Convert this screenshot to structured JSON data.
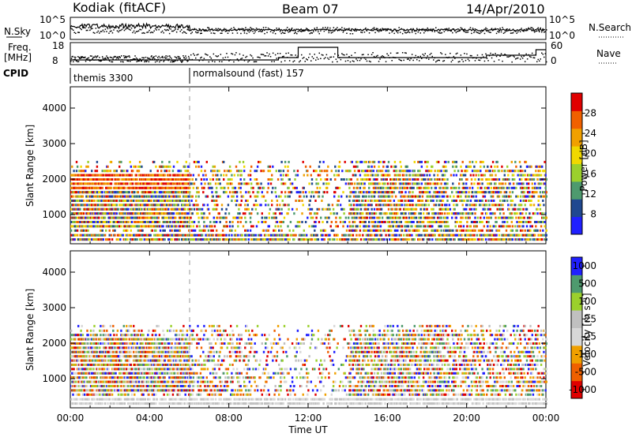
{
  "header": {
    "station": "Kodiak (fitACF)",
    "beam": "Beam 07",
    "date": "14/Apr/2010"
  },
  "meta_panel": {
    "left_label_top": "N.Sky",
    "right_label_top": "N.Search",
    "left_label_mid": "Freq.",
    "left_unit_mid": "[MHz]",
    "right_label_mid": "Nave",
    "cpid_label": "CPID",
    "nsky_ticks": [
      "10^5",
      "10^0"
    ],
    "nsearch_ticks": [
      "10^5",
      "10^0"
    ],
    "freq_ticks": [
      "18",
      "8"
    ],
    "nave_ticks": [
      "60",
      "0"
    ],
    "cpid_segments": [
      {
        "label": "themis 3300",
        "start_hour": 0
      },
      {
        "label": "normalsound (fast) 157",
        "start_hour": 6
      }
    ]
  },
  "colors": {
    "power": [
      "#2020ff",
      "#204890",
      "#4e9a6e",
      "#9bd02c",
      "#f0d800",
      "#f0a000",
      "#f06000",
      "#e00000"
    ],
    "velocity": [
      "#e00000",
      "#f06000",
      "#f0a000",
      "#d8d8d8",
      "#c0c0c0",
      "#9bd02c",
      "#4e9a6e",
      "#2020ff"
    ]
  },
  "chart_data": [
    {
      "type": "heatmap",
      "title": "Power",
      "ylabel": "Slant Range [km]",
      "xlabel": "",
      "xlim": [
        0,
        24
      ],
      "ylim": [
        180,
        4600
      ],
      "yticks": [
        "1000",
        "2000",
        "3000",
        "4000"
      ],
      "xticks": [
        "00:00",
        "04:00",
        "08:00",
        "12:00",
        "16:00",
        "20:00",
        "00:00"
      ],
      "colorbar_label": "Power [dB]",
      "colorbar_ticks": [
        "8",
        "12",
        "16",
        "20",
        "24",
        "28"
      ],
      "colorbar_range": [
        4,
        32
      ],
      "active_range_gates_km": [
        2480,
        2350,
        2230,
        2110,
        1990,
        1870,
        1750,
        1630,
        1510,
        1390,
        1270,
        1150,
        1030,
        910,
        790,
        670,
        550,
        420,
        300
      ]
    },
    {
      "type": "heatmap",
      "title": "Velocity",
      "ylabel": "Slant Range [km]",
      "xlabel": "Time UT",
      "xlim": [
        0,
        24
      ],
      "ylim": [
        180,
        4600
      ],
      "yticks": [
        "1000",
        "2000",
        "3000",
        "4000"
      ],
      "xticks": [
        "00:00",
        "04:00",
        "08:00",
        "12:00",
        "16:00",
        "20:00",
        "00:00"
      ],
      "colorbar_label": "Velocity [m s⁻¹]",
      "colorbar_ticks": [
        "-1000",
        "-500",
        "-100",
        "-25",
        "25",
        "100",
        "500",
        "1000"
      ],
      "active_range_gates_km": [
        2480,
        2350,
        2230,
        2110,
        1990,
        1870,
        1750,
        1630,
        1510,
        1390,
        1270,
        1150,
        1030,
        910,
        790,
        670,
        550,
        420,
        300
      ]
    }
  ]
}
